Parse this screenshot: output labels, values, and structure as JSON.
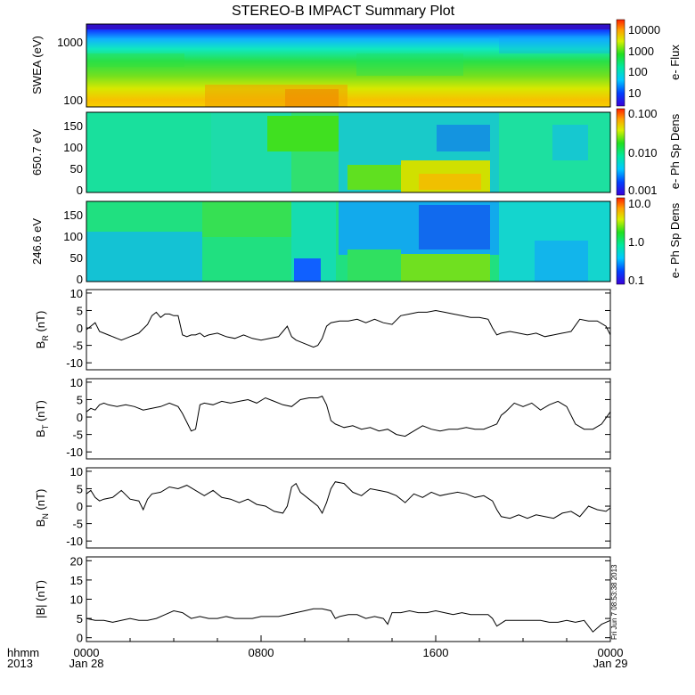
{
  "title": "STEREO-B IMPACT Summary Plot",
  "footer": {
    "left_top": "hhmm",
    "left_bottom": "2013",
    "timestamp": "Fri Jun  7 08:53:38 2013"
  },
  "x_axis": {
    "ticks": [
      {
        "top": "0000",
        "bottom": "Jan 28",
        "hour": 0
      },
      {
        "top": "0800",
        "bottom": "",
        "hour": 8
      },
      {
        "top": "1600",
        "bottom": "",
        "hour": 16
      },
      {
        "top": "0000",
        "bottom": "Jan 29",
        "hour": 24
      }
    ],
    "range_hours": [
      0,
      24
    ]
  },
  "spectrograms": [
    {
      "ylabel": "SWEA (eV)",
      "yticks": [
        "1000",
        "100"
      ],
      "log_y": true,
      "yrange": [
        90,
        2000
      ],
      "colorbar": {
        "label": "e- Flux",
        "ticks": [
          "10000",
          "1000",
          "100",
          "10"
        ],
        "log": true,
        "range": [
          3,
          30000
        ]
      }
    },
    {
      "ylabel": "650.7 eV",
      "yticks": [
        "150",
        "100",
        "50",
        "0"
      ],
      "log_y": false,
      "yrange": [
        -5,
        180
      ],
      "colorbar": {
        "label": "e- Ph Sp Dens",
        "ticks": [
          "0.100",
          "0.010",
          "0.001"
        ],
        "log": true,
        "range": [
          0.001,
          0.15
        ]
      }
    },
    {
      "ylabel": "246.6 eV",
      "yticks": [
        "150",
        "100",
        "50",
        "0"
      ],
      "log_y": false,
      "yrange": [
        -5,
        180
      ],
      "colorbar": {
        "label": "e- Ph Sp Dens",
        "ticks": [
          "10.0",
          "1.0",
          "0.1"
        ],
        "log": true,
        "range": [
          0.08,
          12
        ]
      }
    }
  ],
  "chart_data": [
    {
      "type": "line",
      "panel": "BR",
      "ylabel_main": "B",
      "ylabel_sub": "R",
      "ylabel_unit": " (nT)",
      "ylim": [
        -12,
        11
      ],
      "yticks": [
        10,
        5,
        0,
        -5,
        -10
      ],
      "x": [
        0,
        0.2,
        0.4,
        0.6,
        0.8,
        1.0,
        1.2,
        1.4,
        1.6,
        1.8,
        2.0,
        2.4,
        2.8,
        3.0,
        3.2,
        3.4,
        3.6,
        3.8,
        4.0,
        4.2,
        4.4,
        4.6,
        4.8,
        5.0,
        5.2,
        5.4,
        5.6,
        6.0,
        6.4,
        6.8,
        7.2,
        7.6,
        8.0,
        8.4,
        8.8,
        9.0,
        9.2,
        9.4,
        9.6,
        10.0,
        10.4,
        10.6,
        10.8,
        11.0,
        11.2,
        11.6,
        12.0,
        12.4,
        12.8,
        13.2,
        13.6,
        14.0,
        14.4,
        14.8,
        15.2,
        15.6,
        16.0,
        16.4,
        16.8,
        17.2,
        17.6,
        18.0,
        18.4,
        18.6,
        18.8,
        19.0,
        19.4,
        19.8,
        20.2,
        20.6,
        21.0,
        21.4,
        21.8,
        22.2,
        22.6,
        23.0,
        23.4,
        23.8,
        24.0
      ],
      "series": [
        {
          "values": [
            -0.5,
            0.5,
            1.5,
            -1.0,
            -1.5,
            -2.0,
            -2.5,
            -3.0,
            -3.5,
            -3.0,
            -2.5,
            -1.5,
            1.0,
            3.5,
            4.5,
            3.0,
            4.0,
            4.0,
            3.5,
            3.5,
            -2.0,
            -2.5,
            -2.0,
            -2.0,
            -1.5,
            -2.5,
            -2.0,
            -1.5,
            -2.5,
            -3.0,
            -2.0,
            -3.0,
            -3.5,
            -3.0,
            -2.5,
            -1.0,
            0.5,
            -2.5,
            -3.5,
            -4.5,
            -5.5,
            -5.0,
            -3.0,
            0.5,
            1.5,
            2.0,
            2.0,
            2.5,
            1.5,
            2.5,
            1.5,
            1.0,
            3.5,
            4.0,
            4.5,
            4.5,
            5.0,
            4.5,
            4.0,
            3.5,
            3.0,
            3.0,
            2.5,
            0.0,
            -2.0,
            -1.5,
            -1.0,
            -1.5,
            -2.0,
            -1.5,
            -2.5,
            -2.0,
            -1.5,
            -1.0,
            2.5,
            2.0,
            2.0,
            0.5,
            -2.0
          ]
        }
      ]
    },
    {
      "type": "line",
      "panel": "BT",
      "ylabel_main": "B",
      "ylabel_sub": "T",
      "ylabel_unit": " (nT)",
      "ylim": [
        -12,
        11
      ],
      "yticks": [
        10,
        5,
        0,
        -5,
        -10
      ],
      "x": [
        0,
        0.2,
        0.4,
        0.6,
        0.8,
        1.0,
        1.4,
        1.8,
        2.2,
        2.6,
        3.0,
        3.4,
        3.8,
        4.2,
        4.4,
        4.6,
        4.8,
        5.0,
        5.2,
        5.4,
        5.8,
        6.2,
        6.6,
        7.0,
        7.4,
        7.8,
        8.2,
        8.6,
        9.0,
        9.4,
        9.8,
        10.2,
        10.6,
        10.8,
        11.0,
        11.2,
        11.4,
        11.8,
        12.2,
        12.6,
        13.0,
        13.4,
        13.8,
        14.2,
        14.6,
        15.0,
        15.4,
        15.8,
        16.2,
        16.6,
        17.0,
        17.4,
        17.8,
        18.2,
        18.6,
        18.8,
        19.0,
        19.2,
        19.6,
        20.0,
        20.4,
        20.8,
        21.2,
        21.6,
        22.0,
        22.4,
        22.8,
        23.2,
        23.6,
        24.0
      ],
      "series": [
        {
          "values": [
            1.5,
            2.5,
            2.0,
            3.5,
            4.0,
            3.5,
            3.0,
            3.5,
            3.0,
            2.0,
            2.5,
            3.0,
            4.0,
            3.0,
            1.0,
            -1.5,
            -4.0,
            -3.5,
            3.5,
            4.0,
            3.5,
            4.5,
            4.0,
            4.5,
            5.0,
            4.0,
            5.5,
            4.5,
            3.5,
            3.0,
            5.0,
            5.5,
            5.5,
            6.0,
            3.5,
            -1.0,
            -2.0,
            -3.0,
            -2.5,
            -3.5,
            -3.0,
            -4.0,
            -3.5,
            -5.0,
            -5.5,
            -4.0,
            -2.5,
            -3.5,
            -4.0,
            -3.5,
            -3.5,
            -3.0,
            -3.5,
            -3.5,
            -2.5,
            -2.0,
            0.5,
            1.5,
            4.0,
            3.0,
            4.0,
            2.0,
            3.5,
            4.5,
            3.0,
            -2.0,
            -3.5,
            -3.5,
            -2.0,
            1.5
          ]
        }
      ]
    },
    {
      "type": "line",
      "panel": "BN",
      "ylabel_main": "B",
      "ylabel_sub": "N",
      "ylabel_unit": " (nT)",
      "ylim": [
        -12,
        11
      ],
      "yticks": [
        10,
        5,
        0,
        -5,
        -10
      ],
      "x": [
        0,
        0.2,
        0.4,
        0.6,
        0.8,
        1.2,
        1.6,
        2.0,
        2.4,
        2.6,
        2.8,
        3.0,
        3.4,
        3.8,
        4.2,
        4.6,
        5.0,
        5.4,
        5.8,
        6.2,
        6.6,
        7.0,
        7.4,
        7.8,
        8.2,
        8.6,
        9.0,
        9.2,
        9.4,
        9.6,
        9.8,
        10.2,
        10.6,
        10.8,
        11.0,
        11.2,
        11.4,
        11.8,
        12.2,
        12.6,
        13.0,
        13.4,
        13.8,
        14.2,
        14.6,
        15.0,
        15.4,
        15.8,
        16.2,
        16.6,
        17.0,
        17.4,
        17.8,
        18.2,
        18.6,
        18.8,
        19.0,
        19.4,
        19.8,
        20.2,
        20.6,
        21.0,
        21.4,
        21.8,
        22.2,
        22.6,
        23.0,
        23.4,
        23.8,
        24.0
      ],
      "series": [
        {
          "values": [
            3.5,
            4.5,
            2.5,
            1.5,
            2.0,
            2.5,
            4.5,
            2.0,
            1.5,
            -1.0,
            2.0,
            3.5,
            4.0,
            5.5,
            5.0,
            6.0,
            4.5,
            3.0,
            4.5,
            2.5,
            2.0,
            1.0,
            2.0,
            0.5,
            0.0,
            -1.5,
            -2.0,
            0.0,
            5.5,
            6.5,
            4.0,
            2.0,
            0.0,
            -2.0,
            1.0,
            5.0,
            7.0,
            6.5,
            4.0,
            3.0,
            5.0,
            4.5,
            4.0,
            3.0,
            1.0,
            3.5,
            2.5,
            4.0,
            3.0,
            3.5,
            4.0,
            3.5,
            2.5,
            3.0,
            1.5,
            -1.0,
            -3.0,
            -3.5,
            -2.5,
            -3.5,
            -2.5,
            -3.0,
            -3.5,
            -2.0,
            -1.5,
            -3.0,
            0.0,
            -1.0,
            -1.5,
            -0.5
          ]
        }
      ]
    },
    {
      "type": "line",
      "panel": "Btot",
      "ylabel_main": "|B|",
      "ylabel_sub": "",
      "ylabel_unit": " (nT)",
      "ylim": [
        -1,
        21
      ],
      "yticks": [
        20,
        15,
        10,
        5,
        0
      ],
      "x": [
        0,
        0.4,
        0.8,
        1.2,
        1.6,
        2.0,
        2.4,
        2.8,
        3.2,
        3.6,
        4.0,
        4.4,
        4.8,
        5.2,
        5.6,
        6.0,
        6.4,
        6.8,
        7.2,
        7.6,
        8.0,
        8.4,
        8.8,
        9.2,
        9.6,
        10.0,
        10.4,
        10.8,
        11.2,
        11.4,
        11.6,
        12.0,
        12.4,
        12.8,
        13.2,
        13.6,
        13.8,
        14.0,
        14.4,
        14.8,
        15.2,
        15.6,
        16.0,
        16.4,
        16.8,
        17.2,
        17.6,
        18.0,
        18.4,
        18.6,
        18.8,
        19.2,
        19.6,
        20.0,
        20.4,
        20.8,
        21.2,
        21.6,
        22.0,
        22.4,
        22.8,
        23.2,
        23.6,
        24.0
      ],
      "series": [
        {
          "values": [
            5.0,
            4.5,
            4.5,
            4.0,
            4.5,
            5.0,
            4.5,
            4.5,
            5.0,
            6.0,
            7.0,
            6.5,
            5.0,
            5.5,
            5.0,
            5.0,
            5.5,
            5.0,
            5.0,
            5.0,
            5.5,
            5.5,
            5.5,
            6.0,
            6.5,
            7.0,
            7.5,
            7.5,
            7.0,
            5.0,
            5.5,
            6.0,
            6.0,
            5.0,
            5.5,
            5.0,
            3.5,
            6.5,
            6.5,
            7.0,
            6.5,
            6.5,
            7.0,
            6.5,
            6.0,
            6.5,
            6.0,
            6.0,
            6.0,
            5.0,
            3.0,
            4.5,
            4.5,
            4.5,
            4.5,
            4.5,
            4.0,
            4.0,
            4.5,
            4.0,
            4.5,
            1.5,
            3.5,
            4.5
          ]
        }
      ]
    }
  ]
}
